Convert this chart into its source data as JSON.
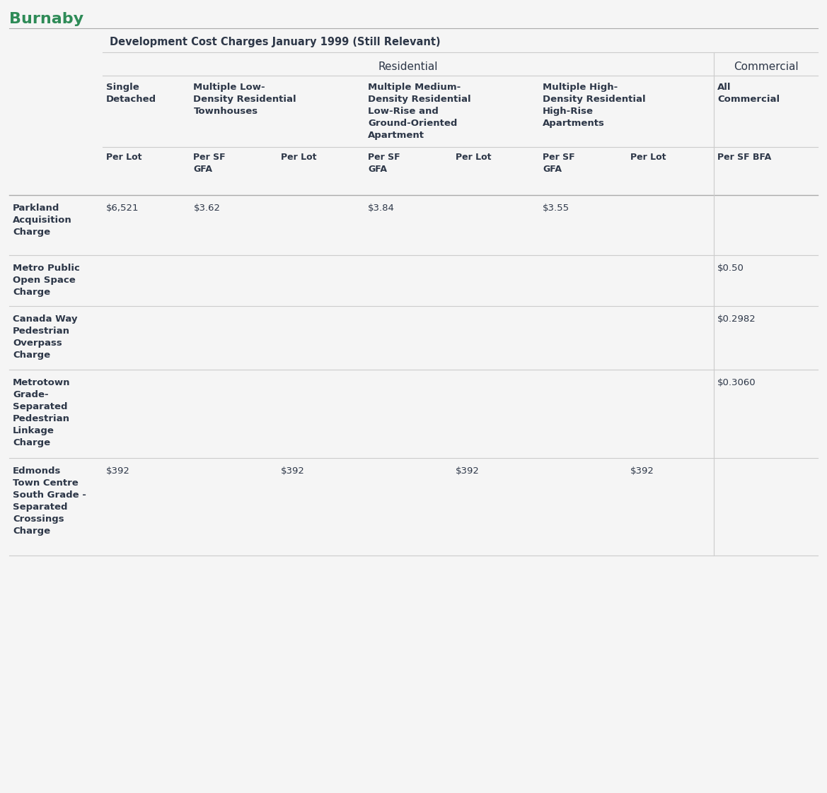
{
  "title": "Burnaby",
  "title_color": "#2e8b57",
  "subtitle": "Development Cost Charges January 1999 (Still Relevant)",
  "background_color": "#f5f5f5",
  "header_group1": "Residential",
  "header_group2": "Commercial",
  "col_header_groups": [
    {
      "text": "Single\nDetached",
      "start": 0,
      "end": 1
    },
    {
      "text": "Multiple Low-\nDensity Residential\nTownhouses",
      "start": 1,
      "end": 3
    },
    {
      "text": "Multiple Medium-\nDensity Residential\nLow-Rise and\nGround-Oriented\nApartment",
      "start": 3,
      "end": 5
    },
    {
      "text": "Multiple High-\nDensity Residential\nHigh-Rise\nApartments",
      "start": 5,
      "end": 7
    },
    {
      "text": "All\nCommercial",
      "start": 7,
      "end": 8
    }
  ],
  "sub_headers": [
    "Per Lot",
    "Per SF\nGFA",
    "Per Lot",
    "Per SF\nGFA",
    "Per Lot",
    "Per SF\nGFA",
    "Per Lot",
    "Per SF BFA"
  ],
  "row_labels": [
    "Parkland\nAcquisition\nCharge",
    "Metro Public\nOpen Space\nCharge",
    "Canada Way\nPedestrian\nOverpass\nCharge",
    "Metrotown\nGrade-\nSeparated\nPedestrian\nLinkage\nCharge",
    "Edmonds\nTown Centre\nSouth Grade -\nSeparated\nCrossings\nCharge"
  ],
  "cell_data": [
    [
      "$6,521",
      "$3.62",
      "",
      "$3.84",
      "",
      "$3.55",
      "",
      ""
    ],
    [
      "",
      "",
      "",
      "",
      "",
      "",
      "",
      "$0.50"
    ],
    [
      "",
      "",
      "",
      "",
      "",
      "",
      "",
      "$0.2982"
    ],
    [
      "",
      "",
      "",
      "",
      "",
      "",
      "",
      "$0.3060"
    ],
    [
      "$392",
      "",
      "$392",
      "",
      "$392",
      "",
      "$392",
      ""
    ]
  ],
  "row_heights": [
    0.85,
    0.72,
    0.9,
    1.25,
    1.38
  ],
  "line_color": "#cccccc",
  "header_line_color": "#aaaaaa",
  "text_color": "#2d3748",
  "col_widths_raw": [
    1.1,
    1.1,
    1.1,
    1.1,
    1.1,
    1.1,
    1.1,
    1.31
  ]
}
